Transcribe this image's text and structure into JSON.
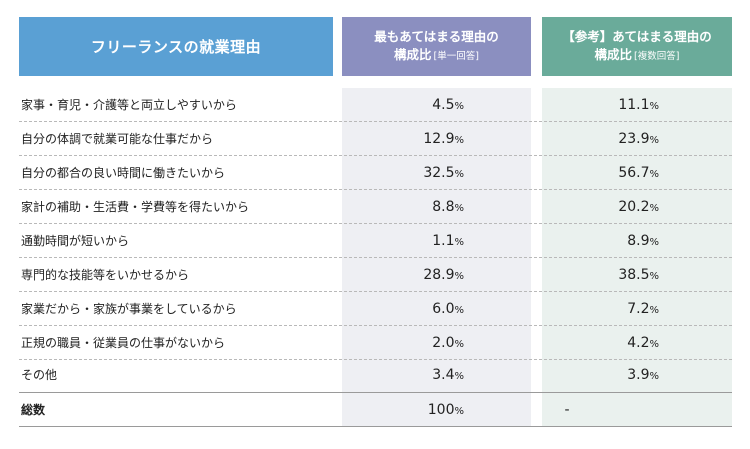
{
  "colors": {
    "header_main": "#5aa0d4",
    "header_a": "#8b8fc0",
    "header_b": "#6aab9a",
    "col_a_shade": "#eeeff3",
    "col_b_shade": "#eaf1ee"
  },
  "header": {
    "main_title": "フリーランスの就業理由",
    "col_a_line1": "最もあてはまる理由の",
    "col_a_line2": "構成比",
    "col_a_note": "[単一回答]",
    "col_b_line1": "【参考】あてはまる理由の",
    "col_b_line2": "構成比",
    "col_b_note": "[複数回答]"
  },
  "rows": [
    {
      "label": "家事・育児・介護等と両立しやすいから",
      "a": "4.5",
      "a_unit": "%",
      "b": "11.1",
      "b_unit": "%"
    },
    {
      "label": "自分の体調で就業可能な仕事だから",
      "a": "12.9",
      "a_unit": "%",
      "b": "23.9",
      "b_unit": "%"
    },
    {
      "label": "自分の都合の良い時間に働きたいから",
      "a": "32.5",
      "a_unit": "%",
      "b": "56.7",
      "b_unit": "%"
    },
    {
      "label": "家計の補助・生活費・学費等を得たいから",
      "a": "8.8",
      "a_unit": "%",
      "b": "20.2",
      "b_unit": "%"
    },
    {
      "label": "通勤時間が短いから",
      "a": "1.1",
      "a_unit": "%",
      "b": "8.9",
      "b_unit": "%"
    },
    {
      "label": "専門的な技能等をいかせるから",
      "a": "28.9",
      "a_unit": "%",
      "b": "38.5",
      "b_unit": "%"
    },
    {
      "label": "家業だから・家族が事業をしているから",
      "a": "6.0",
      "a_unit": "%",
      "b": "7.2",
      "b_unit": "%"
    },
    {
      "label": "正規の職員・従業員の仕事がないから",
      "a": "2.0",
      "a_unit": "%",
      "b": "4.2",
      "b_unit": "%"
    },
    {
      "label": "その他",
      "a": "3.4",
      "a_unit": "%",
      "b": "3.9",
      "b_unit": "%"
    }
  ],
  "total": {
    "label": "総数",
    "a": "100",
    "a_unit": "%",
    "b": "-",
    "b_unit": ""
  }
}
